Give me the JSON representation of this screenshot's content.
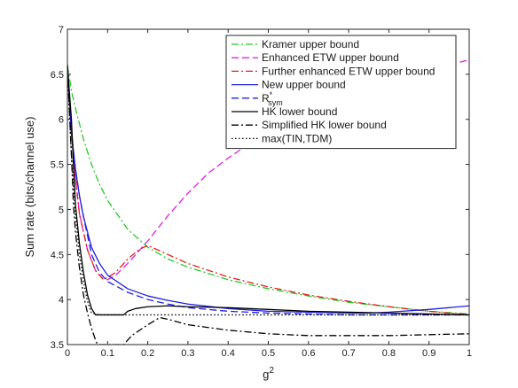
{
  "chart_data": {
    "type": "line",
    "title": "",
    "xlabel": "g",
    "xlabel_sup": "2",
    "ylabel": "Sum rate (bits/channel use)",
    "xlim": [
      0,
      1
    ],
    "ylim": [
      3.5,
      7
    ],
    "grid": false,
    "legend_position": "top-right",
    "xticks": [
      0,
      0.1,
      0.2,
      0.3,
      0.4,
      0.5,
      0.6,
      0.7,
      0.8,
      0.9,
      1
    ],
    "xtick_labels": [
      "0",
      "0.1",
      "0.2",
      "0.3",
      "0.4",
      "0.5",
      "0.6",
      "0.7",
      "0.8",
      "0.9",
      "1"
    ],
    "yticks": [
      3.5,
      4,
      4.5,
      5,
      5.5,
      6,
      6.5,
      7
    ],
    "ytick_labels": [
      "3.5",
      "4",
      "4.5",
      "5",
      "5.5",
      "6",
      "6.5",
      "7"
    ],
    "series": [
      {
        "name": "Kramer upper bound",
        "color": "#22cc22",
        "dash": "dashdot",
        "x": [
          0,
          0.01,
          0.02,
          0.04,
          0.06,
          0.08,
          0.1,
          0.15,
          0.2,
          0.25,
          0.3,
          0.4,
          0.5,
          0.6,
          0.7,
          0.8,
          0.9,
          1
        ],
        "y": [
          6.6,
          6.32,
          6.12,
          5.78,
          5.5,
          5.28,
          5.1,
          4.78,
          4.58,
          4.45,
          4.36,
          4.22,
          4.12,
          4.04,
          3.97,
          3.92,
          3.87,
          3.84
        ]
      },
      {
        "name": "Enhanced ETW upper bound",
        "color": "#e020e0",
        "dash": "dashed",
        "x": [
          0,
          0.01,
          0.02,
          0.03,
          0.05,
          0.07,
          0.09,
          0.1,
          0.12,
          0.15,
          0.2,
          0.25,
          0.3,
          0.35,
          0.4,
          0.45,
          0.5,
          0.55,
          0.6,
          0.65,
          0.7,
          0.8,
          0.9,
          1
        ],
        "y": [
          6.6,
          5.9,
          5.35,
          4.95,
          4.55,
          4.32,
          4.22,
          4.22,
          4.27,
          4.4,
          4.65,
          4.93,
          5.18,
          5.4,
          5.57,
          5.72,
          5.85,
          5.97,
          6.07,
          6.17,
          6.26,
          6.42,
          6.55,
          6.66
        ]
      },
      {
        "name": "Further enhanced ETW upper bound",
        "color": "#e02020",
        "dash": "dashdot",
        "x": [
          0,
          0.01,
          0.02,
          0.03,
          0.05,
          0.07,
          0.09,
          0.12,
          0.15,
          0.18,
          0.2,
          0.25,
          0.3,
          0.4,
          0.5,
          0.6,
          0.7,
          0.8,
          0.9,
          1
        ],
        "y": [
          6.6,
          5.9,
          5.35,
          4.95,
          4.55,
          4.32,
          4.22,
          4.3,
          4.45,
          4.56,
          4.6,
          4.5,
          4.4,
          4.25,
          4.14,
          4.05,
          3.98,
          3.92,
          3.87,
          3.83
        ]
      },
      {
        "name": "New upper bound",
        "color": "#2020dd",
        "dash": "solid",
        "x": [
          0,
          0.01,
          0.02,
          0.03,
          0.04,
          0.06,
          0.08,
          0.1,
          0.15,
          0.2,
          0.25,
          0.3,
          0.4,
          0.5,
          0.6,
          0.7,
          0.75,
          0.8,
          0.9,
          1
        ],
        "y": [
          6.6,
          5.85,
          5.45,
          5.15,
          4.92,
          4.58,
          4.4,
          4.27,
          4.12,
          4.04,
          3.99,
          3.95,
          3.9,
          3.87,
          3.86,
          3.85,
          3.85,
          3.86,
          3.89,
          3.93
        ]
      },
      {
        "name": "R",
        "name_sup": "*",
        "name_sub": "sym",
        "color": "#2020dd",
        "dash": "dashed",
        "x": [
          0,
          0.01,
          0.02,
          0.03,
          0.04,
          0.06,
          0.08,
          0.1,
          0.15,
          0.2,
          0.25,
          0.3,
          0.4,
          0.5,
          0.6,
          0.7,
          0.8,
          0.9,
          1
        ],
        "y": [
          6.6,
          5.85,
          5.45,
          5.15,
          4.92,
          4.5,
          4.3,
          4.2,
          4.08,
          4.0,
          3.95,
          3.91,
          3.87,
          3.85,
          3.84,
          3.83,
          3.83,
          3.83,
          3.83
        ]
      },
      {
        "name": "HK lower bound",
        "color": "#000000",
        "dash": "solid",
        "x": [
          0,
          0.005,
          0.01,
          0.015,
          0.02,
          0.03,
          0.04,
          0.05,
          0.06,
          0.07,
          0.08,
          0.1,
          0.12,
          0.14,
          0.15,
          0.17,
          0.2,
          0.25,
          0.3,
          0.4,
          0.5,
          0.6,
          0.7,
          0.8,
          0.9,
          1
        ],
        "y": [
          6.6,
          6.3,
          6.0,
          5.5,
          5.05,
          4.62,
          4.3,
          4.05,
          3.9,
          3.83,
          3.83,
          3.83,
          3.83,
          3.83,
          3.87,
          3.9,
          3.92,
          3.93,
          3.92,
          3.91,
          3.89,
          3.87,
          3.86,
          3.85,
          3.84,
          3.83
        ]
      },
      {
        "name": "Simplified HK lower bound",
        "color": "#000000",
        "dash": "dashdot",
        "x": [
          0,
          0.005,
          0.01,
          0.015,
          0.02,
          0.03,
          0.04,
          0.05,
          0.06,
          0.07,
          0.075,
          0.14,
          0.16,
          0.2,
          0.23,
          0.26,
          0.3,
          0.4,
          0.5,
          0.6,
          0.7,
          0.8,
          0.9,
          1
        ],
        "y": [
          6.6,
          6.1,
          5.6,
          5.05,
          4.75,
          4.35,
          4.05,
          3.85,
          3.68,
          3.55,
          3.5,
          3.5,
          3.6,
          3.72,
          3.8,
          3.77,
          3.72,
          3.66,
          3.62,
          3.6,
          3.6,
          3.6,
          3.61,
          3.62
        ]
      },
      {
        "name": "max(TIN,TDM)",
        "color": "#000000",
        "dash": "dotted",
        "x": [
          0,
          0.005,
          0.01,
          0.02,
          0.03,
          0.04,
          0.05,
          0.06,
          0.08,
          0.1,
          0.2,
          0.3,
          0.5,
          0.7,
          0.9,
          1
        ],
        "y": [
          6.6,
          6.05,
          5.6,
          4.95,
          4.5,
          4.2,
          3.98,
          3.85,
          3.83,
          3.83,
          3.83,
          3.83,
          3.83,
          3.83,
          3.83,
          3.83
        ]
      }
    ]
  }
}
